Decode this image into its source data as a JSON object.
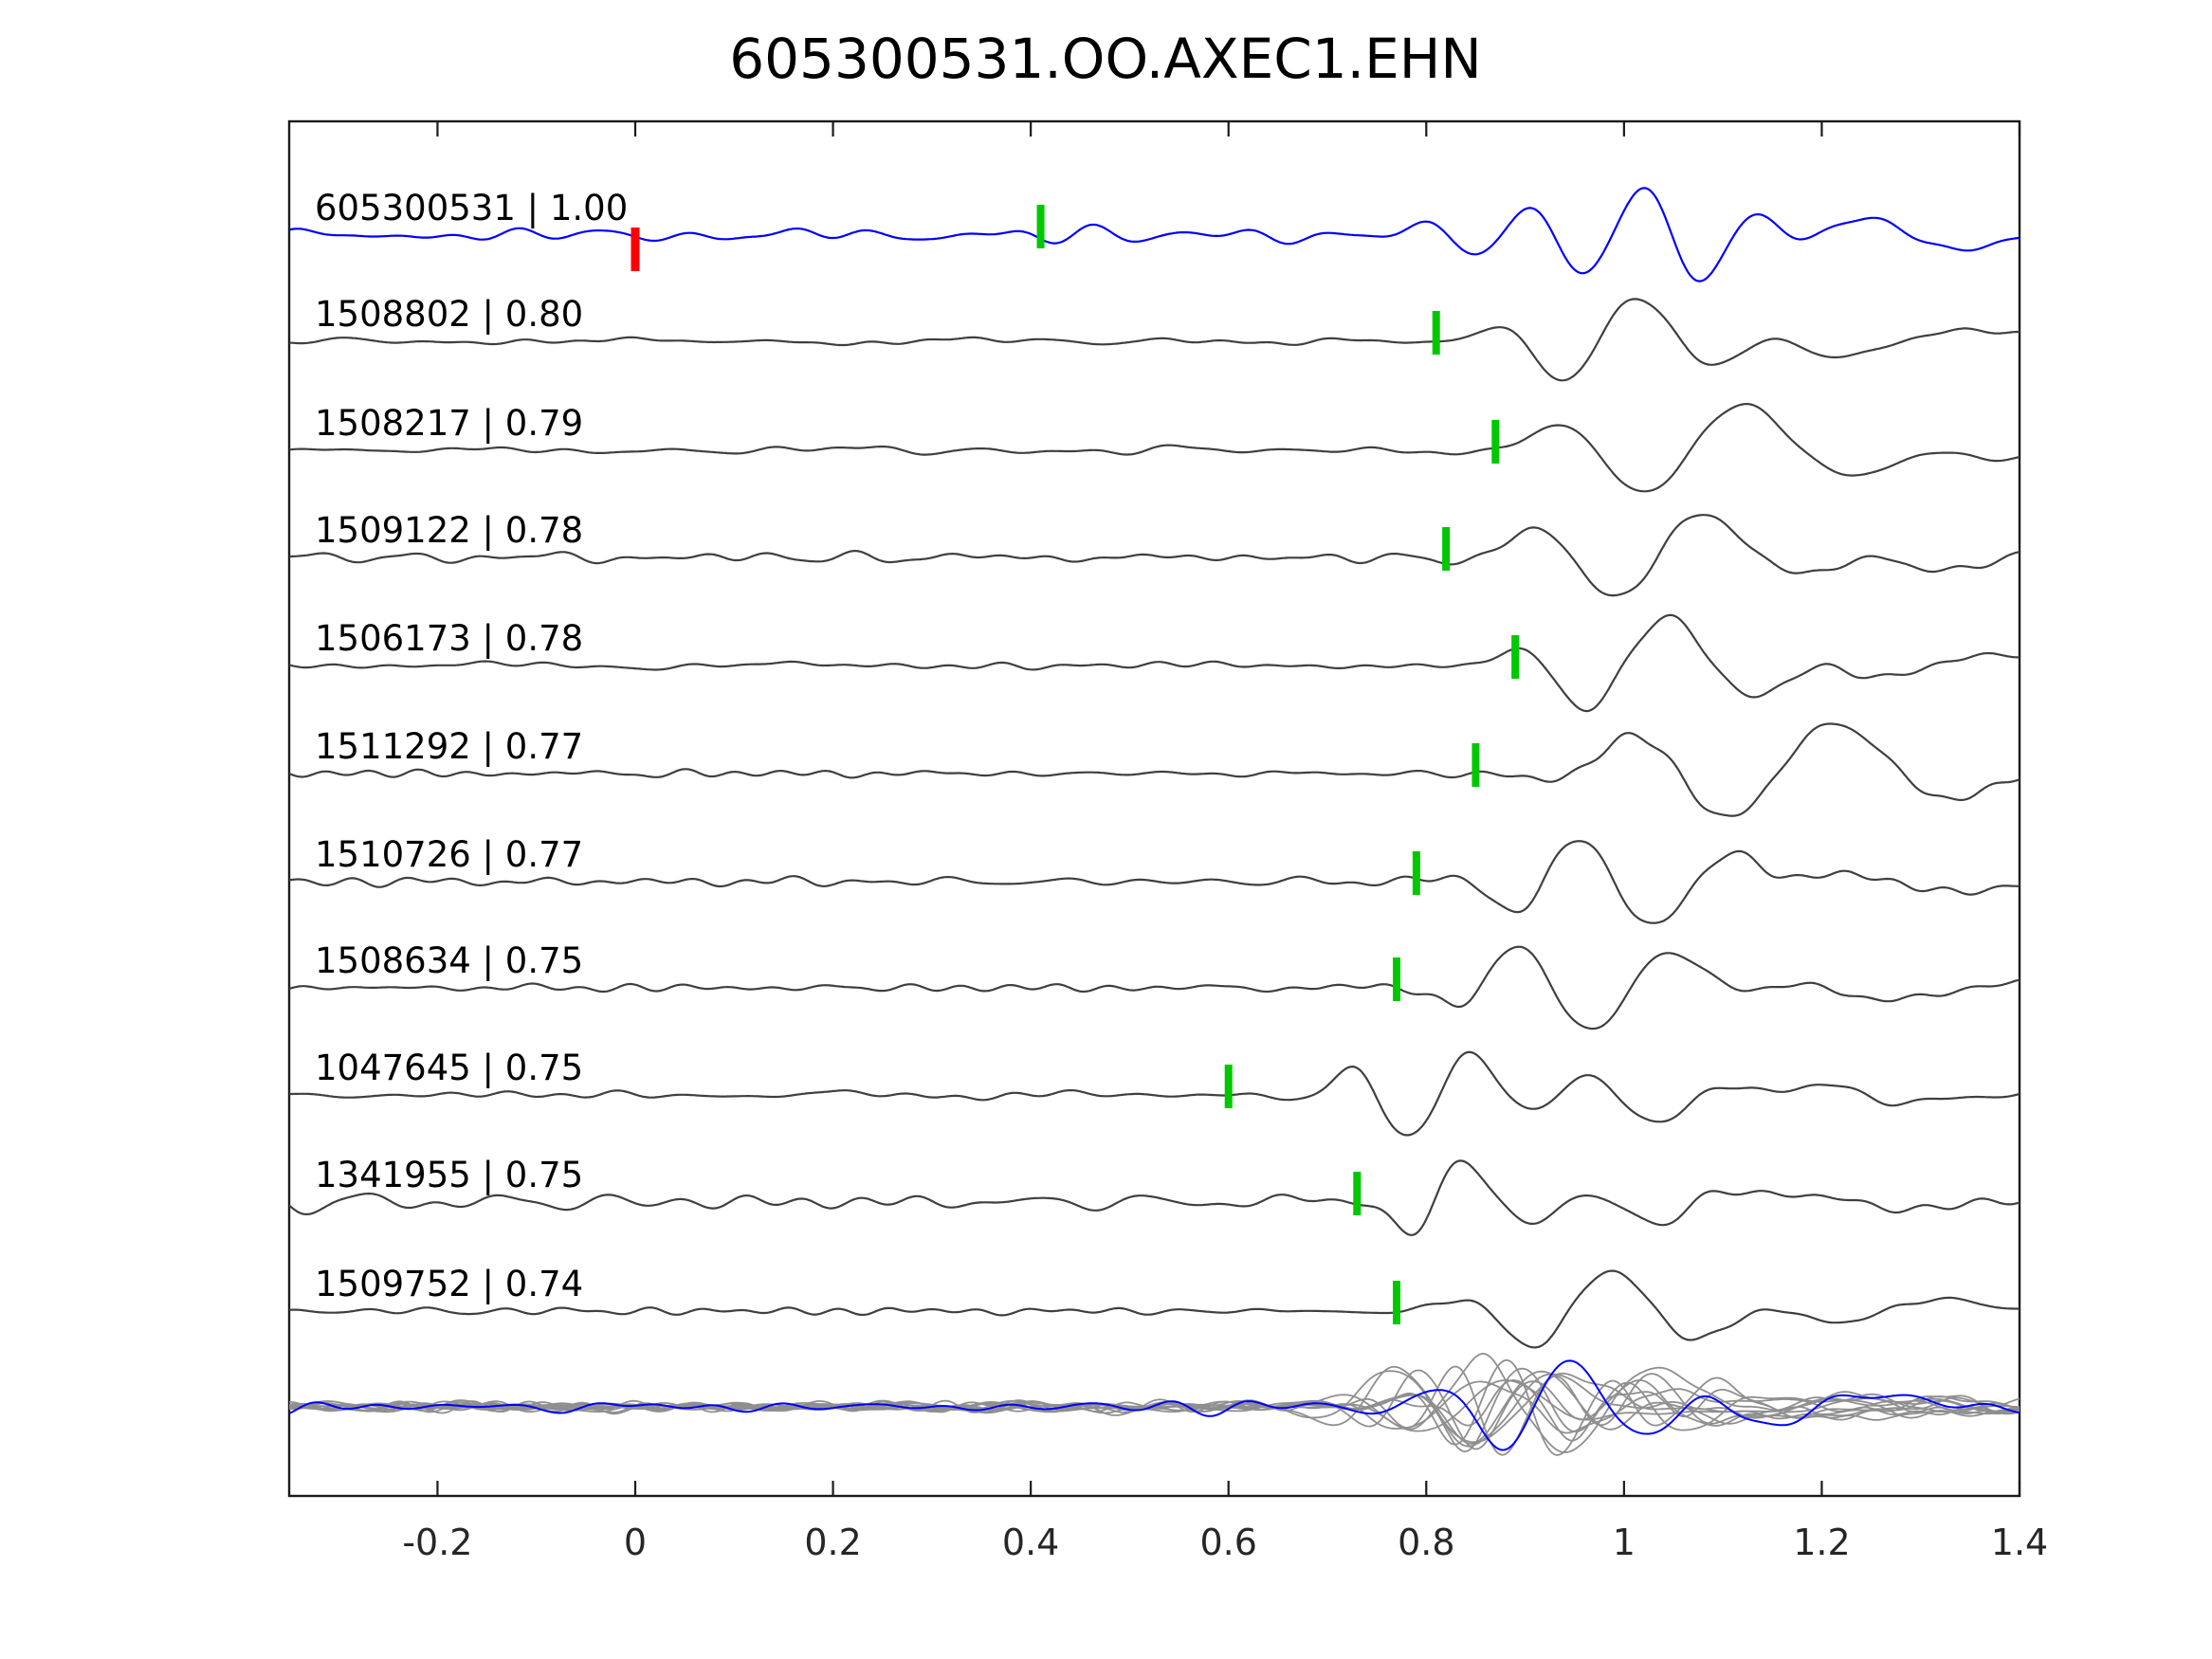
{
  "title": "605300531.OO.AXEC1.EHN",
  "chart_data": {
    "type": "line",
    "title": "605300531.OO.AXEC1.EHN",
    "xlabel": "",
    "ylabel": "",
    "xlim": [
      -0.35,
      1.4
    ],
    "grid": false,
    "legend": "none",
    "x_ticks": [
      {
        "value": -0.2,
        "label": "-0.2"
      },
      {
        "value": 0,
        "label": "0"
      },
      {
        "value": 0.2,
        "label": "0.2"
      },
      {
        "value": 0.4,
        "label": "0.4"
      },
      {
        "value": 0.6,
        "label": "0.6"
      },
      {
        "value": 0.8,
        "label": "0.8"
      },
      {
        "value": 1,
        "label": "1"
      },
      {
        "value": 1.2,
        "label": "1.2"
      },
      {
        "value": 1.4,
        "label": "1.4"
      }
    ],
    "colors": {
      "template_trace": "#0000ff",
      "detection_trace": "#3f3f3f",
      "stack_gray": "#8f8f8f",
      "pick_marker": "#00c800",
      "origin_marker": "#ff0000",
      "axis": "#1a1a1a",
      "background": "#ffffff"
    },
    "traces": [
      {
        "id": "605300531",
        "cc": "1.00",
        "label": "605300531 | 1.00",
        "color": "#0000ff",
        "pick_x": 0.41,
        "origin_marker_x": 0.0
      },
      {
        "id": "1508802",
        "cc": "0.80",
        "label": "1508802 | 0.80",
        "color": "#3f3f3f",
        "pick_x": 0.81
      },
      {
        "id": "1508217",
        "cc": "0.79",
        "label": "1508217 | 0.79",
        "color": "#3f3f3f",
        "pick_x": 0.87
      },
      {
        "id": "1509122",
        "cc": "0.78",
        "label": "1509122 | 0.78",
        "color": "#3f3f3f",
        "pick_x": 0.82
      },
      {
        "id": "1506173",
        "cc": "0.78",
        "label": "1506173 | 0.78",
        "color": "#3f3f3f",
        "pick_x": 0.89
      },
      {
        "id": "1511292",
        "cc": "0.77",
        "label": "1511292 | 0.77",
        "color": "#3f3f3f",
        "pick_x": 0.85
      },
      {
        "id": "1510726",
        "cc": "0.77",
        "label": "1510726 | 0.77",
        "color": "#3f3f3f",
        "pick_x": 0.79
      },
      {
        "id": "1508634",
        "cc": "0.75",
        "label": "1508634 | 0.75",
        "color": "#3f3f3f",
        "pick_x": 0.77
      },
      {
        "id": "1047645",
        "cc": "0.75",
        "label": "1047645 | 0.75",
        "color": "#3f3f3f",
        "pick_x": 0.6
      },
      {
        "id": "1341955",
        "cc": "0.75",
        "label": "1341955 | 0.75",
        "color": "#3f3f3f",
        "pick_x": 0.73
      },
      {
        "id": "1509752",
        "cc": "0.74",
        "label": "1509752 | 0.74",
        "color": "#3f3f3f",
        "pick_x": 0.77
      }
    ],
    "overlay_row": {
      "description": "all detection waveforms overlaid with template",
      "gray_count": 11,
      "has_blue_template": true
    }
  }
}
